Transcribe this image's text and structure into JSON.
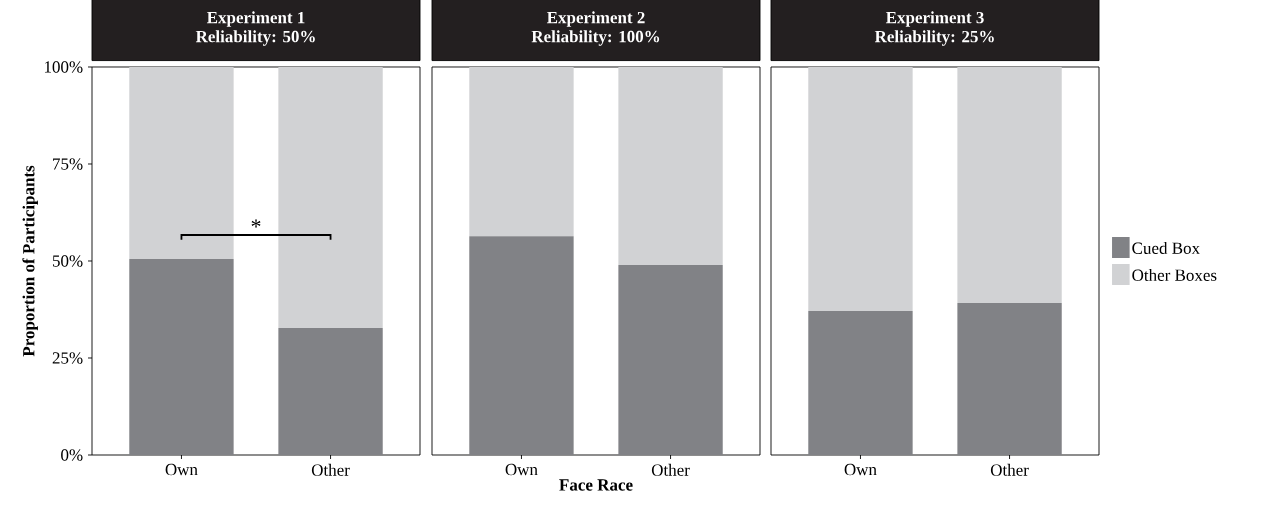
{
  "chart_data": [
    {
      "type": "bar",
      "stacked": true,
      "title": "Experiment 1",
      "subtitle": "Reliability: 50%",
      "ylabel": "Proportion of Participants",
      "categories": [
        "Own",
        "Other"
      ],
      "series": [
        {
          "color": "#818286",
          "values": [
            50.5,
            32.7
          ]
        },
        {
          "color": "#d1d2d4",
          "values": [
            49.5,
            67.3
          ]
        }
      ],
      "ylim": [
        0,
        100
      ],
      "yticks": [
        {
          "value": 0,
          "label": "0%"
        },
        {
          "value": 25,
          "label": "25%"
        },
        {
          "value": 50,
          "label": "50%"
        },
        {
          "value": 75,
          "label": "75%"
        },
        {
          "value": 100,
          "label": "100%"
        }
      ],
      "annotations": [
        "*"
      ]
    },
    {
      "type": "bar",
      "stacked": true,
      "title": "Experiment 2",
      "subtitle": "Reliability: 100%",
      "xlabel": "Face Race",
      "categories": [
        "Own",
        "Other"
      ],
      "series": [
        {
          "color": "#818286",
          "values": [
            56.4,
            49.0
          ]
        },
        {
          "color": "#d1d2d4",
          "values": [
            43.6,
            51.0
          ]
        }
      ],
      "ylim": [
        0,
        100
      ],
      "tick_labels": "x"
    },
    {
      "type": "bar",
      "stacked": true,
      "title": "Experiment 3",
      "subtitle": "Reliability: 25%",
      "categories": [
        "Own",
        "Other"
      ],
      "series": [
        {
          "name": "Cued Box",
          "color": "#818286",
          "values": [
            37.1,
            39.2
          ]
        },
        {
          "name": "Other Boxes",
          "color": "#d1d2d4",
          "values": [
            62.9,
            60.8
          ]
        }
      ],
      "ylim": [
        0,
        100
      ],
      "tick_labels": "x",
      "legend": "right"
    }
  ]
}
